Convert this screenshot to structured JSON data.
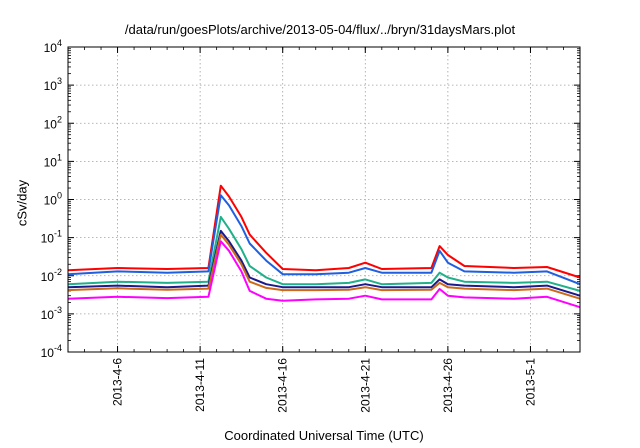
{
  "chart_data": {
    "type": "line",
    "title": "/data/run/goesPlots/archive/2013-05-04/flux/../bryn/31daysMars.plot",
    "xlabel": "Coordinated Universal Time (UTC)",
    "ylabel": "cSv/day",
    "yscale": "log",
    "ylim": [
      0.0001,
      10000
    ],
    "y_ticks": [
      {
        "base": "10",
        "exp": "-4"
      },
      {
        "base": "10",
        "exp": "-3"
      },
      {
        "base": "10",
        "exp": "-2"
      },
      {
        "base": "10",
        "exp": "-1"
      },
      {
        "base": "10",
        "exp": "0"
      },
      {
        "base": "10",
        "exp": "1"
      },
      {
        "base": "10",
        "exp": "2"
      },
      {
        "base": "10",
        "exp": "3"
      },
      {
        "base": "10",
        "exp": "4"
      }
    ],
    "xlim": [
      "2013-04-03",
      "2013-05-04"
    ],
    "x_ticks": [
      "2013-4-6",
      "2013-4-11",
      "2013-4-16",
      "2013-4-21",
      "2013-4-26",
      "2013-5-1"
    ],
    "grid": true,
    "series": [
      {
        "color": "#ff0000",
        "points": [
          [
            "2013-04-03",
            0.014
          ],
          [
            "2013-04-06",
            0.016
          ],
          [
            "2013-04-09",
            0.015
          ],
          [
            "2013-04-11T12",
            0.016
          ],
          [
            "2013-04-12T06",
            2.3
          ],
          [
            "2013-04-12T18",
            1.2
          ],
          [
            "2013-04-13T12",
            0.35
          ],
          [
            "2013-04-14",
            0.12
          ],
          [
            "2013-04-15",
            0.04
          ],
          [
            "2013-04-16",
            0.015
          ],
          [
            "2013-04-18",
            0.014
          ],
          [
            "2013-04-20",
            0.016
          ],
          [
            "2013-04-21",
            0.022
          ],
          [
            "2013-04-22",
            0.015
          ],
          [
            "2013-04-25",
            0.016
          ],
          [
            "2013-04-25T12",
            0.06
          ],
          [
            "2013-04-26",
            0.035
          ],
          [
            "2013-04-27",
            0.018
          ],
          [
            "2013-04-30",
            0.016
          ],
          [
            "2013-05-02",
            0.017
          ],
          [
            "2013-05-04",
            0.009
          ]
        ]
      },
      {
        "color": "#1f5fe0",
        "points": [
          [
            "2013-04-03",
            0.011
          ],
          [
            "2013-04-06",
            0.013
          ],
          [
            "2013-04-09",
            0.012
          ],
          [
            "2013-04-11T12",
            0.013
          ],
          [
            "2013-04-12T06",
            1.3
          ],
          [
            "2013-04-12T18",
            0.7
          ],
          [
            "2013-04-13T12",
            0.2
          ],
          [
            "2013-04-14",
            0.07
          ],
          [
            "2013-04-15",
            0.025
          ],
          [
            "2013-04-16",
            0.011
          ],
          [
            "2013-04-18",
            0.011
          ],
          [
            "2013-04-20",
            0.012
          ],
          [
            "2013-04-21",
            0.016
          ],
          [
            "2013-04-22",
            0.012
          ],
          [
            "2013-04-25",
            0.012
          ],
          [
            "2013-04-25T12",
            0.045
          ],
          [
            "2013-04-26",
            0.022
          ],
          [
            "2013-04-27",
            0.013
          ],
          [
            "2013-04-30",
            0.012
          ],
          [
            "2013-05-02",
            0.013
          ],
          [
            "2013-05-04",
            0.006
          ]
        ]
      },
      {
        "color": "#20b08a",
        "points": [
          [
            "2013-04-03",
            0.006
          ],
          [
            "2013-04-06",
            0.007
          ],
          [
            "2013-04-09",
            0.0065
          ],
          [
            "2013-04-11T12",
            0.007
          ],
          [
            "2013-04-12T06",
            0.35
          ],
          [
            "2013-04-12T18",
            0.17
          ],
          [
            "2013-04-13T12",
            0.05
          ],
          [
            "2013-04-14",
            0.018
          ],
          [
            "2013-04-15",
            0.009
          ],
          [
            "2013-04-16",
            0.006
          ],
          [
            "2013-04-18",
            0.006
          ],
          [
            "2013-04-20",
            0.0065
          ],
          [
            "2013-04-21",
            0.008
          ],
          [
            "2013-04-22",
            0.006
          ],
          [
            "2013-04-25",
            0.0065
          ],
          [
            "2013-04-25T12",
            0.012
          ],
          [
            "2013-04-26",
            0.009
          ],
          [
            "2013-04-27",
            0.007
          ],
          [
            "2013-04-30",
            0.0065
          ],
          [
            "2013-05-02",
            0.007
          ],
          [
            "2013-05-04",
            0.004
          ]
        ]
      },
      {
        "color": "#1a1a8c",
        "points": [
          [
            "2013-04-03",
            0.005
          ],
          [
            "2013-04-06",
            0.0055
          ],
          [
            "2013-04-09",
            0.005
          ],
          [
            "2013-04-11T12",
            0.0055
          ],
          [
            "2013-04-12T06",
            0.15
          ],
          [
            "2013-04-12T18",
            0.08
          ],
          [
            "2013-04-13T12",
            0.025
          ],
          [
            "2013-04-14",
            0.009
          ],
          [
            "2013-04-15",
            0.006
          ],
          [
            "2013-04-16",
            0.005
          ],
          [
            "2013-04-18",
            0.005
          ],
          [
            "2013-04-20",
            0.005
          ],
          [
            "2013-04-21",
            0.006
          ],
          [
            "2013-04-22",
            0.005
          ],
          [
            "2013-04-25",
            0.005
          ],
          [
            "2013-04-25T12",
            0.008
          ],
          [
            "2013-04-26",
            0.006
          ],
          [
            "2013-04-27",
            0.0055
          ],
          [
            "2013-04-30",
            0.005
          ],
          [
            "2013-05-02",
            0.0055
          ],
          [
            "2013-05-04",
            0.003
          ]
        ]
      },
      {
        "color": "#cc6a1a",
        "points": [
          [
            "2013-04-03",
            0.0042
          ],
          [
            "2013-04-06",
            0.0047
          ],
          [
            "2013-04-09",
            0.0043
          ],
          [
            "2013-04-11T12",
            0.0046
          ],
          [
            "2013-04-12T06",
            0.12
          ],
          [
            "2013-04-12T18",
            0.065
          ],
          [
            "2013-04-13T12",
            0.02
          ],
          [
            "2013-04-14",
            0.007
          ],
          [
            "2013-04-15",
            0.0048
          ],
          [
            "2013-04-16",
            0.0042
          ],
          [
            "2013-04-18",
            0.0042
          ],
          [
            "2013-04-20",
            0.0043
          ],
          [
            "2013-04-21",
            0.005
          ],
          [
            "2013-04-22",
            0.0042
          ],
          [
            "2013-04-25",
            0.0043
          ],
          [
            "2013-04-25T12",
            0.0065
          ],
          [
            "2013-04-26",
            0.005
          ],
          [
            "2013-04-27",
            0.0046
          ],
          [
            "2013-04-30",
            0.0042
          ],
          [
            "2013-05-02",
            0.0046
          ],
          [
            "2013-05-04",
            0.0025
          ]
        ]
      },
      {
        "color": "#ff00ff",
        "points": [
          [
            "2013-04-03",
            0.0025
          ],
          [
            "2013-04-06",
            0.0028
          ],
          [
            "2013-04-09",
            0.0026
          ],
          [
            "2013-04-11T12",
            0.0028
          ],
          [
            "2013-04-12T06",
            0.08
          ],
          [
            "2013-04-12T18",
            0.045
          ],
          [
            "2013-04-13T12",
            0.013
          ],
          [
            "2013-04-14",
            0.004
          ],
          [
            "2013-04-15",
            0.0025
          ],
          [
            "2013-04-16",
            0.0022
          ],
          [
            "2013-04-18",
            0.0024
          ],
          [
            "2013-04-20",
            0.0025
          ],
          [
            "2013-04-21",
            0.003
          ],
          [
            "2013-04-22",
            0.0024
          ],
          [
            "2013-04-25",
            0.0024
          ],
          [
            "2013-04-25T12",
            0.0045
          ],
          [
            "2013-04-26",
            0.003
          ],
          [
            "2013-04-27",
            0.0027
          ],
          [
            "2013-04-30",
            0.0025
          ],
          [
            "2013-05-02",
            0.0028
          ],
          [
            "2013-05-04",
            0.0015
          ]
        ]
      }
    ]
  }
}
